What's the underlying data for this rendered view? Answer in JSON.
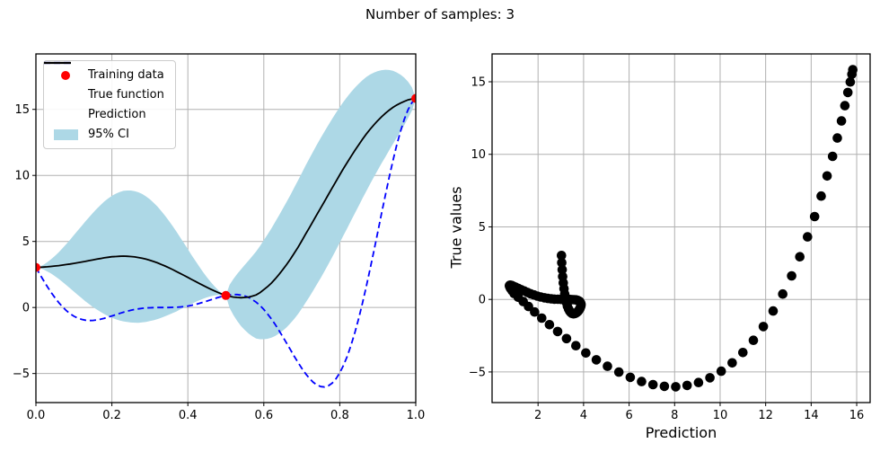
{
  "title": "Number of samples: 3",
  "colors": {
    "training": "#ff0000",
    "true_function": "#0000ff",
    "prediction": "#000000",
    "ci": "#add8e6",
    "grid": "#b0b0b0",
    "spine": "#000000",
    "text": "#000000"
  },
  "legend": {
    "items": [
      {
        "label": "Training data",
        "marker": "dot",
        "color": "#ff0000"
      },
      {
        "label": "True function",
        "marker": "dashed-line",
        "color": "#0000ff"
      },
      {
        "label": "Prediction",
        "marker": "line",
        "color": "#000000"
      },
      {
        "label": "95% CI",
        "marker": "patch",
        "color": "#add8e6"
      }
    ]
  },
  "chart_data": [
    {
      "name": "gp-fit",
      "type": "line",
      "title": "",
      "xlabel": "",
      "ylabel": "",
      "xlim": [
        0,
        1
      ],
      "ylim": [
        -7.2,
        19.2
      ],
      "xticks": [
        0,
        0.2,
        0.4,
        0.6,
        0.8,
        1
      ],
      "xtick_labels": [
        "0.0",
        "0.2",
        "0.4",
        "0.6",
        "0.8",
        "1.0"
      ],
      "yticks": [
        -5,
        0,
        5,
        10,
        15
      ],
      "grid": true,
      "legend_position": "upper left",
      "x": [
        0,
        0.01,
        0.02,
        0.03,
        0.04,
        0.05,
        0.06,
        0.07,
        0.08,
        0.09,
        0.1,
        0.11,
        0.12,
        0.13,
        0.14,
        0.15,
        0.16,
        0.17,
        0.18,
        0.19,
        0.2,
        0.21,
        0.22,
        0.23,
        0.24,
        0.25,
        0.26,
        0.27,
        0.28,
        0.29,
        0.3,
        0.31,
        0.32,
        0.33,
        0.34,
        0.35,
        0.36,
        0.37,
        0.38,
        0.39,
        0.4,
        0.41,
        0.42,
        0.43,
        0.44,
        0.45,
        0.46,
        0.47,
        0.48,
        0.49,
        0.5,
        0.51,
        0.52,
        0.53,
        0.54,
        0.55,
        0.56,
        0.57,
        0.58,
        0.59,
        0.6,
        0.61,
        0.62,
        0.63,
        0.64,
        0.65,
        0.66,
        0.67,
        0.68,
        0.69,
        0.7,
        0.71,
        0.72,
        0.73,
        0.74,
        0.75,
        0.76,
        0.77,
        0.78,
        0.79,
        0.8,
        0.81,
        0.82,
        0.83,
        0.84,
        0.85,
        0.86,
        0.87,
        0.88,
        0.89,
        0.9,
        0.91,
        0.92,
        0.93,
        0.94,
        0.95,
        0.96,
        0.97,
        0.98,
        0.99,
        1
      ],
      "series": [
        {
          "name": "Training data",
          "type": "scatter",
          "color": "#ff0000",
          "x": [
            0,
            0.5,
            1
          ],
          "y": [
            3.03,
            0.91,
            15.83
          ]
        },
        {
          "name": "True function",
          "type": "line",
          "linestyle": "dashed",
          "color": "#0000ff",
          "y": [
            3.03,
            2.53,
            2.05,
            1.58,
            1.14,
            0.74,
            0.37,
            0.05,
            -0.23,
            -0.47,
            -0.66,
            -0.8,
            -0.9,
            -0.96,
            -0.99,
            -0.98,
            -0.94,
            -0.89,
            -0.82,
            -0.73,
            -0.64,
            -0.55,
            -0.45,
            -0.36,
            -0.28,
            -0.21,
            -0.15,
            -0.1,
            -0.06,
            -0.03,
            -0.02,
            -0.01,
            0,
            0,
            0,
            0,
            0.01,
            0.02,
            0.04,
            0.07,
            0.11,
            0.17,
            0.23,
            0.31,
            0.39,
            0.48,
            0.58,
            0.67,
            0.76,
            0.84,
            0.91,
            0.96,
            0.98,
            0.98,
            0.94,
            0.87,
            0.76,
            0.6,
            0.4,
            0.15,
            -0.15,
            -0.49,
            -0.87,
            -1.29,
            -1.74,
            -2.21,
            -2.7,
            -3.19,
            -3.69,
            -4.16,
            -4.61,
            -5.01,
            -5.37,
            -5.66,
            -5.87,
            -5.99,
            -6.02,
            -5.93,
            -5.73,
            -5.4,
            -4.95,
            -4.37,
            -3.66,
            -2.82,
            -1.87,
            -0.8,
            0.37,
            1.62,
            2.94,
            4.31,
            5.71,
            7.12,
            8.51,
            9.86,
            11.12,
            12.3,
            13.35,
            14.26,
            14.99,
            15.52,
            15.83
          ]
        },
        {
          "name": "Prediction",
          "type": "line",
          "linestyle": "solid",
          "color": "#000000",
          "y": [
            3.03,
            3.04,
            3.06,
            3.08,
            3.11,
            3.14,
            3.17,
            3.21,
            3.25,
            3.29,
            3.34,
            3.39,
            3.44,
            3.49,
            3.55,
            3.6,
            3.66,
            3.71,
            3.76,
            3.8,
            3.84,
            3.86,
            3.88,
            3.89,
            3.88,
            3.86,
            3.83,
            3.78,
            3.73,
            3.66,
            3.58,
            3.48,
            3.38,
            3.26,
            3.14,
            3.01,
            2.87,
            2.72,
            2.58,
            2.43,
            2.28,
            2.12,
            1.97,
            1.82,
            1.67,
            1.53,
            1.39,
            1.26,
            1.13,
            1.01,
            0.91,
            0.84,
            0.79,
            0.76,
            0.74,
            0.76,
            0.79,
            0.86,
            0.95,
            1.13,
            1.35,
            1.58,
            1.85,
            2.16,
            2.5,
            2.86,
            3.25,
            3.66,
            4.1,
            4.56,
            5.05,
            5.55,
            6.05,
            6.55,
            7.05,
            7.55,
            8.05,
            8.55,
            9.05,
            9.55,
            10.05,
            10.53,
            11,
            11.46,
            11.9,
            12.33,
            12.75,
            13.14,
            13.5,
            13.84,
            14.15,
            14.44,
            14.7,
            14.94,
            15.15,
            15.33,
            15.48,
            15.61,
            15.72,
            15.79,
            15.83
          ]
        },
        {
          "name": "95% CI",
          "type": "band",
          "color": "#add8e6",
          "center": "Prediction",
          "halfwidth": [
            0,
            0.06,
            0.18,
            0.35,
            0.54,
            0.77,
            1.01,
            1.28,
            1.55,
            1.84,
            2.14,
            2.43,
            2.72,
            3.02,
            3.29,
            3.56,
            3.81,
            4.04,
            4.26,
            4.45,
            4.61,
            4.75,
            4.86,
            4.94,
            4.98,
            5,
            4.98,
            4.94,
            4.86,
            4.75,
            4.61,
            4.45,
            4.26,
            4.04,
            3.81,
            3.56,
            3.29,
            3.02,
            2.72,
            2.43,
            2.14,
            1.84,
            1.55,
            1.28,
            1.01,
            0.77,
            0.54,
            0.35,
            0.18,
            0.06,
            0,
            0.88,
            1.37,
            1.79,
            2.15,
            2.47,
            2.77,
            3.04,
            3.3,
            3.53,
            3.75,
            3.95,
            4.14,
            4.32,
            4.47,
            4.62,
            4.75,
            4.86,
            4.97,
            5.06,
            5.13,
            5.19,
            5.24,
            5.27,
            5.29,
            5.3,
            5.29,
            5.27,
            5.24,
            5.19,
            5.13,
            5.06,
            4.97,
            4.86,
            4.75,
            4.62,
            4.47,
            4.32,
            4.14,
            3.95,
            3.75,
            3.53,
            3.3,
            3.04,
            2.77,
            2.47,
            2.15,
            1.79,
            1.37,
            0.88,
            0
          ]
        }
      ]
    },
    {
      "name": "pred-vs-true",
      "type": "scatter",
      "title": "",
      "xlabel": "Prediction",
      "ylabel": "True values",
      "color": "#000000",
      "xlim": [
        -0.02,
        16.59
      ],
      "ylim": [
        -7.11,
        16.92
      ],
      "xticks": [
        2,
        4,
        6,
        8,
        10,
        12,
        14,
        16
      ],
      "yticks": [
        -5,
        0,
        5,
        10,
        15
      ],
      "grid": true,
      "x": [
        3.03,
        3.04,
        3.06,
        3.08,
        3.11,
        3.14,
        3.17,
        3.21,
        3.25,
        3.29,
        3.34,
        3.39,
        3.44,
        3.49,
        3.55,
        3.6,
        3.66,
        3.71,
        3.76,
        3.8,
        3.84,
        3.86,
        3.88,
        3.89,
        3.88,
        3.86,
        3.83,
        3.78,
        3.73,
        3.66,
        3.58,
        3.48,
        3.38,
        3.26,
        3.14,
        3.01,
        2.87,
        2.72,
        2.58,
        2.43,
        2.28,
        2.12,
        1.97,
        1.82,
        1.67,
        1.53,
        1.39,
        1.26,
        1.13,
        1.01,
        0.91,
        0.84,
        0.79,
        0.76,
        0.74,
        0.76,
        0.79,
        0.86,
        0.95,
        1.13,
        1.35,
        1.58,
        1.85,
        2.16,
        2.5,
        2.86,
        3.25,
        3.66,
        4.1,
        4.56,
        5.05,
        5.55,
        6.05,
        6.55,
        7.05,
        7.55,
        8.05,
        8.55,
        9.05,
        9.55,
        10.05,
        10.53,
        11,
        11.46,
        11.9,
        12.33,
        12.75,
        13.14,
        13.5,
        13.84,
        14.15,
        14.44,
        14.7,
        14.94,
        15.15,
        15.33,
        15.48,
        15.61,
        15.72,
        15.79,
        15.83
      ],
      "y": [
        3.03,
        2.53,
        2.05,
        1.58,
        1.14,
        0.74,
        0.37,
        0.05,
        -0.23,
        -0.47,
        -0.66,
        -0.8,
        -0.9,
        -0.96,
        -0.99,
        -0.98,
        -0.94,
        -0.89,
        -0.82,
        -0.73,
        -0.64,
        -0.55,
        -0.45,
        -0.36,
        -0.28,
        -0.21,
        -0.15,
        -0.1,
        -0.06,
        -0.03,
        -0.02,
        -0.01,
        0,
        0,
        0,
        0,
        0.01,
        0.02,
        0.04,
        0.07,
        0.11,
        0.17,
        0.23,
        0.31,
        0.39,
        0.48,
        0.58,
        0.67,
        0.76,
        0.84,
        0.91,
        0.96,
        0.98,
        0.98,
        0.94,
        0.87,
        0.76,
        0.6,
        0.4,
        0.15,
        -0.15,
        -0.49,
        -0.87,
        -1.29,
        -1.74,
        -2.21,
        -2.7,
        -3.19,
        -3.69,
        -4.16,
        -4.61,
        -5.01,
        -5.37,
        -5.66,
        -5.87,
        -5.99,
        -6.02,
        -5.93,
        -5.73,
        -5.4,
        -4.95,
        -4.37,
        -3.66,
        -2.82,
        -1.87,
        -0.8,
        0.37,
        1.62,
        2.94,
        4.31,
        5.71,
        7.12,
        8.51,
        9.86,
        11.12,
        12.3,
        13.35,
        14.26,
        14.99,
        15.52,
        15.83
      ]
    }
  ]
}
